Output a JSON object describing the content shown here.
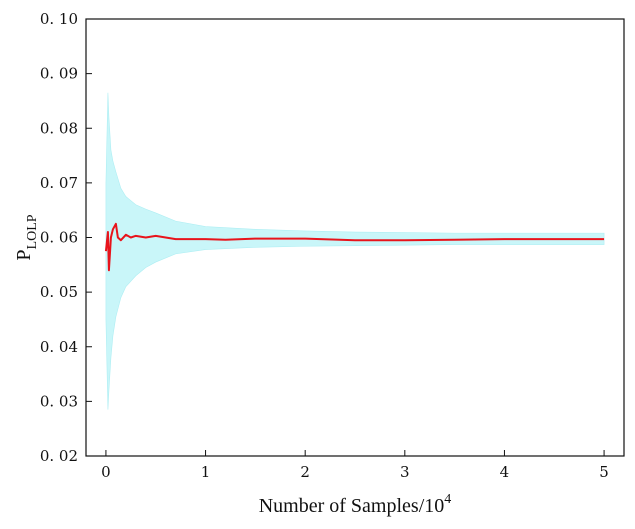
{
  "chart_data": {
    "type": "line",
    "xlabel": "Number of Samples/10",
    "xlabel_superscript": "4",
    "ylabel": "P",
    "ylabel_subscript": "LOLP",
    "xlim": [
      -0.2,
      5.2
    ],
    "ylim": [
      0.02,
      0.1
    ],
    "x_ticks": [
      0,
      1,
      2,
      3,
      4,
      5
    ],
    "x_tick_labels": [
      "0",
      "1",
      "2",
      "3",
      "4",
      "5"
    ],
    "y_ticks": [
      0.02,
      0.03,
      0.04,
      0.05,
      0.06,
      0.07,
      0.08,
      0.09,
      0.1
    ],
    "y_tick_labels": [
      "0. 02",
      "0. 03",
      "0. 04",
      "0. 05",
      "0. 06",
      "0. 07",
      "0. 08",
      "0. 09",
      "0. 10"
    ],
    "grid": false,
    "series": [
      {
        "role": "mean",
        "color": "#e8141c",
        "x": [
          0.0,
          0.02,
          0.03,
          0.05,
          0.07,
          0.1,
          0.12,
          0.15,
          0.2,
          0.25,
          0.3,
          0.4,
          0.5,
          0.6,
          0.7,
          0.8,
          1.0,
          1.2,
          1.5,
          2.0,
          2.5,
          3.0,
          3.5,
          4.0,
          4.5,
          5.0
        ],
        "y": [
          0.0575,
          0.061,
          0.054,
          0.06,
          0.0615,
          0.0625,
          0.06,
          0.0595,
          0.0605,
          0.06,
          0.0603,
          0.06,
          0.0603,
          0.06,
          0.0597,
          0.0597,
          0.0597,
          0.0596,
          0.0598,
          0.0598,
          0.0595,
          0.0595,
          0.0596,
          0.0597,
          0.0597,
          0.0597
        ]
      },
      {
        "role": "confidence-band",
        "color": "#c9f6f9",
        "x": [
          0.0,
          0.02,
          0.03,
          0.05,
          0.07,
          0.1,
          0.15,
          0.2,
          0.3,
          0.4,
          0.5,
          0.7,
          1.0,
          1.5,
          2.0,
          2.5,
          3.0,
          3.5,
          4.0,
          4.5,
          5.0
        ],
        "upper": [
          0.07,
          0.0865,
          0.082,
          0.076,
          0.074,
          0.072,
          0.069,
          0.0675,
          0.066,
          0.0652,
          0.0645,
          0.063,
          0.062,
          0.0615,
          0.0612,
          0.061,
          0.0609,
          0.0608,
          0.0608,
          0.0608,
          0.0608
        ],
        "lower": [
          0.045,
          0.0285,
          0.032,
          0.038,
          0.042,
          0.0455,
          0.049,
          0.051,
          0.053,
          0.0545,
          0.0555,
          0.057,
          0.0578,
          0.0582,
          0.0584,
          0.0585,
          0.0586,
          0.0587,
          0.0587,
          0.0587,
          0.0587
        ]
      }
    ]
  }
}
